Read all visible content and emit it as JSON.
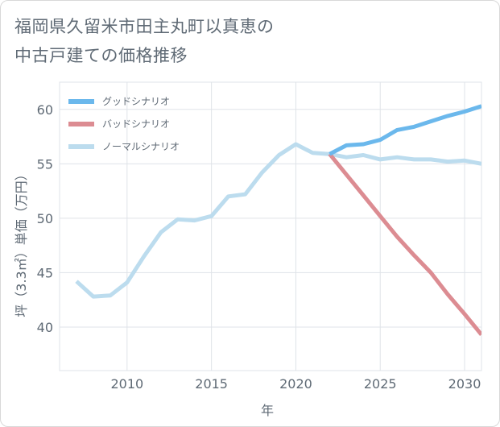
{
  "title": "福岡県久留米市田主丸町以真恵の\n中古戸建ての価格推移",
  "chart_data": {
    "type": "line",
    "title": "福岡県久留米市田主丸町以真恵の中古戸建ての価格推移",
    "xlabel": "年",
    "ylabel": "坪（3.3㎡）単価（万円）",
    "xlim": [
      2006,
      2031
    ],
    "ylim": [
      36,
      62.5
    ],
    "xticks": [
      2010,
      2015,
      2020,
      2025,
      2030
    ],
    "yticks": [
      40,
      45,
      50,
      55,
      60
    ],
    "grid": true,
    "legend_position": "top-left",
    "series": [
      {
        "name": "グッドシナリオ",
        "color": "#6bb8ec",
        "x": [
          2022,
          2023,
          2024,
          2025,
          2026,
          2027,
          2028,
          2029,
          2030,
          2031
        ],
        "y": [
          55.9,
          56.7,
          56.8,
          57.2,
          58.1,
          58.4,
          58.9,
          59.4,
          59.8,
          60.3
        ]
      },
      {
        "name": "バッドシナリオ",
        "color": "#dc8c92",
        "x": [
          2022,
          2023,
          2024,
          2025,
          2026,
          2027,
          2028,
          2029,
          2030,
          2031
        ],
        "y": [
          55.9,
          54.0,
          52.1,
          50.2,
          48.3,
          46.6,
          45.0,
          43.0,
          41.2,
          39.3
        ]
      },
      {
        "name": "ノーマルシナリオ",
        "color": "#bcdcee",
        "x": [
          2007,
          2008,
          2009,
          2010,
          2011,
          2012,
          2013,
          2014,
          2015,
          2016,
          2017,
          2018,
          2019,
          2020,
          2021,
          2022,
          2023,
          2024,
          2025,
          2026,
          2027,
          2028,
          2029,
          2030,
          2031
        ],
        "y": [
          44.2,
          42.8,
          42.9,
          44.1,
          46.5,
          48.7,
          49.9,
          49.8,
          50.2,
          52.0,
          52.2,
          54.2,
          55.8,
          56.8,
          56.0,
          55.9,
          55.6,
          55.8,
          55.4,
          55.6,
          55.4,
          55.4,
          55.2,
          55.3,
          55.0
        ]
      }
    ]
  }
}
